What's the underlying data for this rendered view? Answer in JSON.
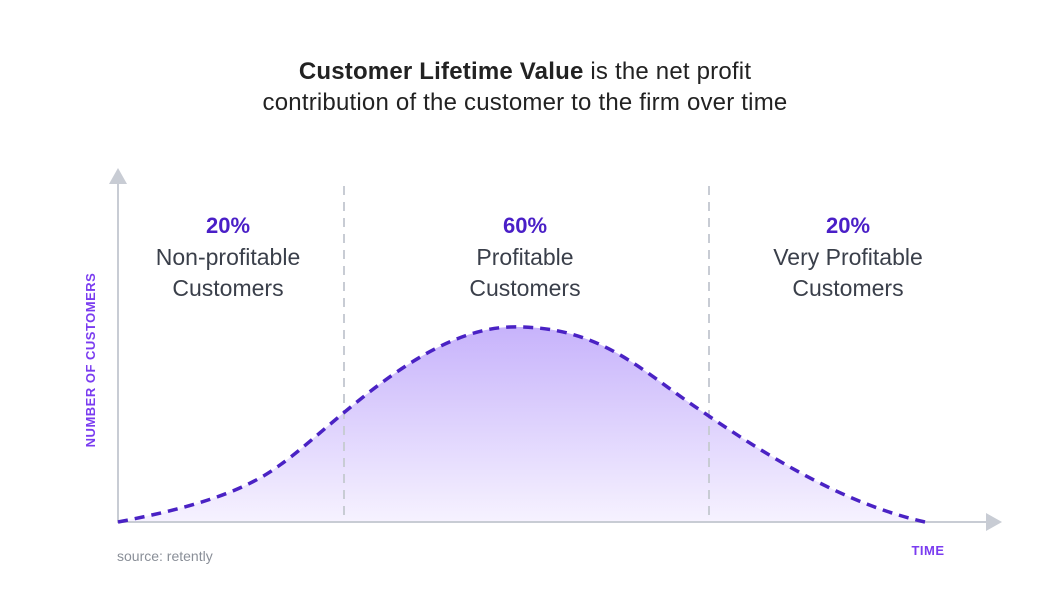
{
  "title": {
    "bold": "Customer Lifetime Value",
    "line1_rest": " is the net profit",
    "line2": "contribution of the customer to the firm over time"
  },
  "segments": [
    {
      "percent": "20%",
      "line1": "Non-profitable",
      "line2": "Customers"
    },
    {
      "percent": "60%",
      "line1": "Profitable",
      "line2": "Customers"
    },
    {
      "percent": "20%",
      "line1": "Very Profitable",
      "line2": "Customers"
    }
  ],
  "axes": {
    "y_label": "NUMBER OF CUSTOMERS",
    "x_label": "TIME"
  },
  "source": "source: retently",
  "colors": {
    "accent": "#4a1fc7",
    "curve": "#4a22c4",
    "fill_top": "#c7b3fb",
    "fill_bottom": "#f6f2ff",
    "axis": "#c8ccd4",
    "divider": "#c8ccd4"
  }
}
